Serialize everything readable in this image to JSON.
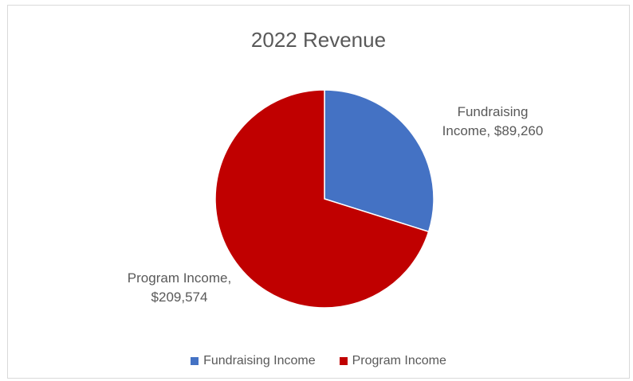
{
  "chart_data": {
    "type": "pie",
    "title": "2022 Revenue",
    "categories": [
      "Fundraising Income",
      "Program Income"
    ],
    "values": [
      89260,
      209574
    ],
    "colors": [
      "#4472c4",
      "#c00000"
    ],
    "data_labels": [
      {
        "line1": "Fundraising",
        "line2": "Income, $89,260"
      },
      {
        "line1": "Program Income,",
        "line2": "$209,574"
      }
    ],
    "legend_position": "bottom"
  }
}
